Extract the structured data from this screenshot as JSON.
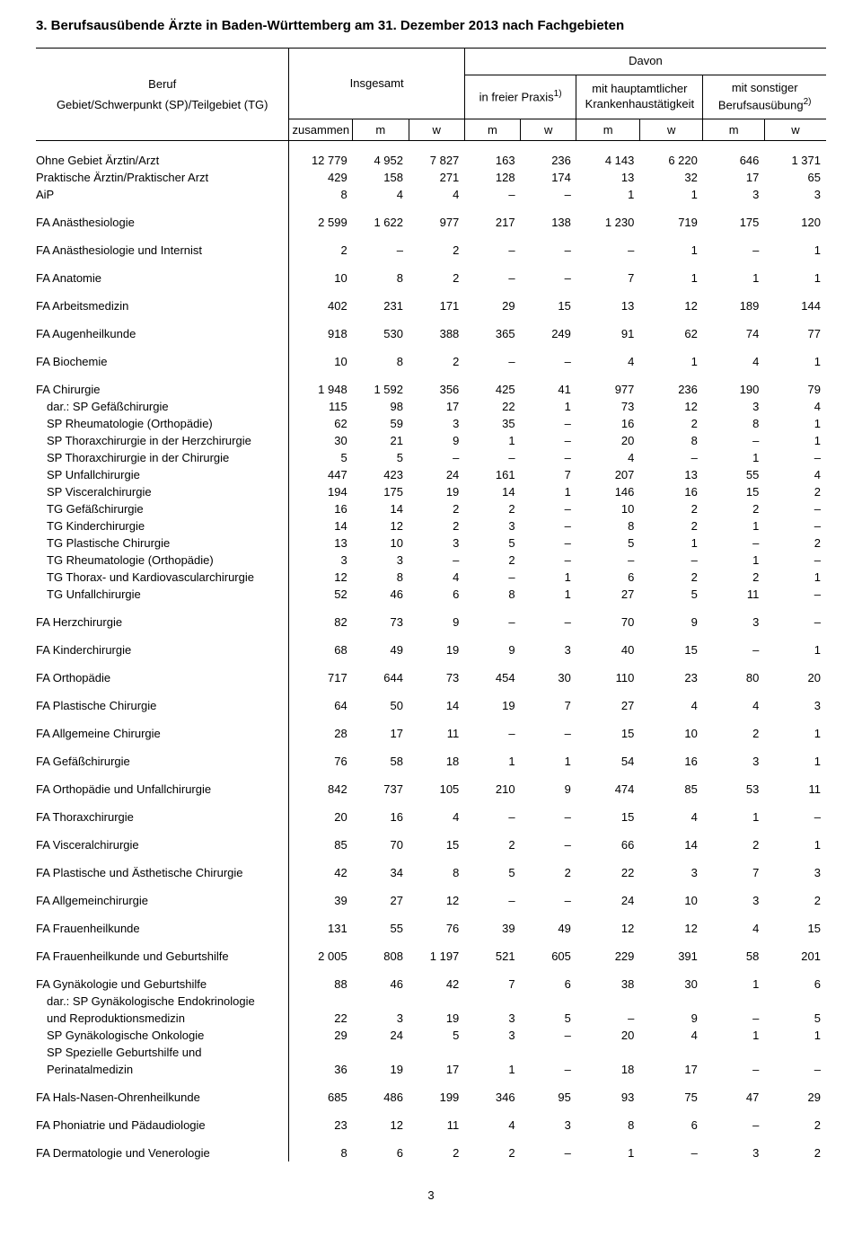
{
  "title": "3. Berufsausübende Ärzte in Baden-Württemberg am 31. Dezember 2013 nach Fachgebieten",
  "header": {
    "label1": "Beruf",
    "label2": "Gebiet/Schwerpunkt (SP)/Teilgebiet (TG)",
    "insgesamt": "Insgesamt",
    "davon": "Davon",
    "freier": "in freier Praxis",
    "freier_sup": "1)",
    "haupt": "mit hauptamtlicher Krankenhaustätigkeit",
    "sonst": "mit sonstiger Berufsausübung",
    "sonst_sup": "2)",
    "zusammen": "zusammen",
    "m": "m",
    "w": "w"
  },
  "rows": [
    {
      "label": "Ohne Gebiet Ärztin/Arzt",
      "indent": 0,
      "cells": [
        "12 779",
        "4 952",
        "7 827",
        "163",
        "236",
        "4 143",
        "6 220",
        "646",
        "1 371"
      ]
    },
    {
      "label": "Praktische Ärztin/Praktischer Arzt",
      "indent": 0,
      "cells": [
        "429",
        "158",
        "271",
        "128",
        "174",
        "13",
        "32",
        "17",
        "65"
      ]
    },
    {
      "label": "AiP",
      "indent": 0,
      "cells": [
        "8",
        "4",
        "4",
        "–",
        "–",
        "1",
        "1",
        "3",
        "3"
      ],
      "spaceAfter": true
    },
    {
      "label": "FA Anästhesiologie",
      "indent": 0,
      "cells": [
        "2 599",
        "1 622",
        "977",
        "217",
        "138",
        "1 230",
        "719",
        "175",
        "120"
      ],
      "spaceAfter": true
    },
    {
      "label": "FA Anästhesiologie und Internist",
      "indent": 0,
      "cells": [
        "2",
        "–",
        "2",
        "–",
        "–",
        "–",
        "1",
        "–",
        "1"
      ],
      "spaceAfter": true
    },
    {
      "label": "FA Anatomie",
      "indent": 0,
      "cells": [
        "10",
        "8",
        "2",
        "–",
        "–",
        "7",
        "1",
        "1",
        "1"
      ],
      "spaceAfter": true
    },
    {
      "label": "FA Arbeitsmedizin",
      "indent": 0,
      "cells": [
        "402",
        "231",
        "171",
        "29",
        "15",
        "13",
        "12",
        "189",
        "144"
      ],
      "spaceAfter": true
    },
    {
      "label": "FA Augenheilkunde",
      "indent": 0,
      "cells": [
        "918",
        "530",
        "388",
        "365",
        "249",
        "91",
        "62",
        "74",
        "77"
      ],
      "spaceAfter": true
    },
    {
      "label": "FA Biochemie",
      "indent": 0,
      "cells": [
        "10",
        "8",
        "2",
        "–",
        "–",
        "4",
        "1",
        "4",
        "1"
      ],
      "spaceAfter": true
    },
    {
      "label": "FA Chirurgie",
      "indent": 0,
      "cells": [
        "1 948",
        "1 592",
        "356",
        "425",
        "41",
        "977",
        "236",
        "190",
        "79"
      ]
    },
    {
      "label": "dar.: SP Gefäßchirurgie",
      "indent": 1,
      "cells": [
        "115",
        "98",
        "17",
        "22",
        "1",
        "73",
        "12",
        "3",
        "4"
      ]
    },
    {
      "label": "SP Rheumatologie (Orthopädie)",
      "indent": 1,
      "cells": [
        "62",
        "59",
        "3",
        "35",
        "–",
        "16",
        "2",
        "8",
        "1"
      ]
    },
    {
      "label": "SP Thoraxchirurgie in der Herzchirurgie",
      "indent": 1,
      "cells": [
        "30",
        "21",
        "9",
        "1",
        "–",
        "20",
        "8",
        "–",
        "1"
      ]
    },
    {
      "label": "SP Thoraxchirurgie in der Chirurgie",
      "indent": 1,
      "cells": [
        "5",
        "5",
        "–",
        "–",
        "–",
        "4",
        "–",
        "1",
        "–"
      ]
    },
    {
      "label": "SP Unfallchirurgie",
      "indent": 1,
      "cells": [
        "447",
        "423",
        "24",
        "161",
        "7",
        "207",
        "13",
        "55",
        "4"
      ]
    },
    {
      "label": "SP Visceralchirurgie",
      "indent": 1,
      "cells": [
        "194",
        "175",
        "19",
        "14",
        "1",
        "146",
        "16",
        "15",
        "2"
      ]
    },
    {
      "label": "TG Gefäßchirurgie",
      "indent": 1,
      "cells": [
        "16",
        "14",
        "2",
        "2",
        "–",
        "10",
        "2",
        "2",
        "–"
      ]
    },
    {
      "label": "TG Kinderchirurgie",
      "indent": 1,
      "cells": [
        "14",
        "12",
        "2",
        "3",
        "–",
        "8",
        "2",
        "1",
        "–"
      ]
    },
    {
      "label": "TG Plastische Chirurgie",
      "indent": 1,
      "cells": [
        "13",
        "10",
        "3",
        "5",
        "–",
        "5",
        "1",
        "–",
        "2"
      ]
    },
    {
      "label": "TG Rheumatologie (Orthopädie)",
      "indent": 1,
      "cells": [
        "3",
        "3",
        "–",
        "2",
        "–",
        "–",
        "–",
        "1",
        "–"
      ]
    },
    {
      "label": "TG Thorax- und Kardiovascularchirurgie",
      "indent": 1,
      "cells": [
        "12",
        "8",
        "4",
        "–",
        "1",
        "6",
        "2",
        "2",
        "1"
      ]
    },
    {
      "label": "TG Unfallchirurgie",
      "indent": 1,
      "cells": [
        "52",
        "46",
        "6",
        "8",
        "1",
        "27",
        "5",
        "11",
        "–"
      ],
      "spaceAfter": true
    },
    {
      "label": "FA Herzchirurgie",
      "indent": 0,
      "cells": [
        "82",
        "73",
        "9",
        "–",
        "–",
        "70",
        "9",
        "3",
        "–"
      ],
      "spaceAfter": true
    },
    {
      "label": "FA Kinderchirurgie",
      "indent": 0,
      "cells": [
        "68",
        "49",
        "19",
        "9",
        "3",
        "40",
        "15",
        "–",
        "1"
      ],
      "spaceAfter": true
    },
    {
      "label": "FA Orthopädie",
      "indent": 0,
      "cells": [
        "717",
        "644",
        "73",
        "454",
        "30",
        "110",
        "23",
        "80",
        "20"
      ],
      "spaceAfter": true
    },
    {
      "label": "FA Plastische Chirurgie",
      "indent": 0,
      "cells": [
        "64",
        "50",
        "14",
        "19",
        "7",
        "27",
        "4",
        "4",
        "3"
      ],
      "spaceAfter": true
    },
    {
      "label": "FA Allgemeine Chirurgie",
      "indent": 0,
      "cells": [
        "28",
        "17",
        "11",
        "–",
        "–",
        "15",
        "10",
        "2",
        "1"
      ],
      "spaceAfter": true
    },
    {
      "label": "FA Gefäßchirurgie",
      "indent": 0,
      "cells": [
        "76",
        "58",
        "18",
        "1",
        "1",
        "54",
        "16",
        "3",
        "1"
      ],
      "spaceAfter": true
    },
    {
      "label": "FA Orthopädie und Unfallchirurgie",
      "indent": 0,
      "cells": [
        "842",
        "737",
        "105",
        "210",
        "9",
        "474",
        "85",
        "53",
        "11"
      ],
      "spaceAfter": true
    },
    {
      "label": "FA Thoraxchirurgie",
      "indent": 0,
      "cells": [
        "20",
        "16",
        "4",
        "–",
        "–",
        "15",
        "4",
        "1",
        "–"
      ],
      "spaceAfter": true
    },
    {
      "label": "FA Visceralchirurgie",
      "indent": 0,
      "cells": [
        "85",
        "70",
        "15",
        "2",
        "–",
        "66",
        "14",
        "2",
        "1"
      ],
      "spaceAfter": true
    },
    {
      "label": "FA Plastische und Ästhetische Chirurgie",
      "indent": 0,
      "cells": [
        "42",
        "34",
        "8",
        "5",
        "2",
        "22",
        "3",
        "7",
        "3"
      ],
      "spaceAfter": true
    },
    {
      "label": "FA Allgemeinchirurgie",
      "indent": 0,
      "cells": [
        "39",
        "27",
        "12",
        "–",
        "–",
        "24",
        "10",
        "3",
        "2"
      ],
      "spaceAfter": true
    },
    {
      "label": "FA Frauenheilkunde",
      "indent": 0,
      "cells": [
        "131",
        "55",
        "76",
        "39",
        "49",
        "12",
        "12",
        "4",
        "15"
      ],
      "spaceAfter": true
    },
    {
      "label": "FA Frauenheilkunde und Geburtshilfe",
      "indent": 0,
      "cells": [
        "2 005",
        "808",
        "1 197",
        "521",
        "605",
        "229",
        "391",
        "58",
        "201"
      ],
      "spaceAfter": true
    },
    {
      "label": "FA Gynäkologie und Geburtshilfe",
      "indent": 0,
      "cells": [
        "88",
        "46",
        "42",
        "7",
        "6",
        "38",
        "30",
        "1",
        "6"
      ]
    },
    {
      "label": "dar.: SP Gynäkologische Endokrinologie",
      "indent": 1,
      "cells": [
        "",
        "",
        "",
        "",
        "",
        "",
        "",
        "",
        ""
      ]
    },
    {
      "label": "und Reproduktionsmedizin",
      "indent": 1,
      "cells": [
        "22",
        "3",
        "19",
        "3",
        "5",
        "–",
        "9",
        "–",
        "5"
      ]
    },
    {
      "label": "SP Gynäkologische Onkologie",
      "indent": 1,
      "cells": [
        "29",
        "24",
        "5",
        "3",
        "–",
        "20",
        "4",
        "1",
        "1"
      ]
    },
    {
      "label": "SP Spezielle Geburtshilfe und",
      "indent": 1,
      "cells": [
        "",
        "",
        "",
        "",
        "",
        "",
        "",
        "",
        ""
      ]
    },
    {
      "label": "Perinatalmedizin",
      "indent": 1,
      "cells": [
        "36",
        "19",
        "17",
        "1",
        "–",
        "18",
        "17",
        "–",
        "–"
      ],
      "spaceAfter": true
    },
    {
      "label": "FA Hals-Nasen-Ohrenheilkunde",
      "indent": 0,
      "cells": [
        "685",
        "486",
        "199",
        "346",
        "95",
        "93",
        "75",
        "47",
        "29"
      ],
      "spaceAfter": true
    },
    {
      "label": "FA Phoniatrie und Pädaudiologie",
      "indent": 0,
      "cells": [
        "23",
        "12",
        "11",
        "4",
        "3",
        "8",
        "6",
        "–",
        "2"
      ],
      "spaceAfter": true
    },
    {
      "label": "FA Dermatologie und Venerologie",
      "indent": 0,
      "cells": [
        "8",
        "6",
        "2",
        "2",
        "–",
        "1",
        "–",
        "3",
        "2"
      ]
    }
  ],
  "pageNumber": "3"
}
